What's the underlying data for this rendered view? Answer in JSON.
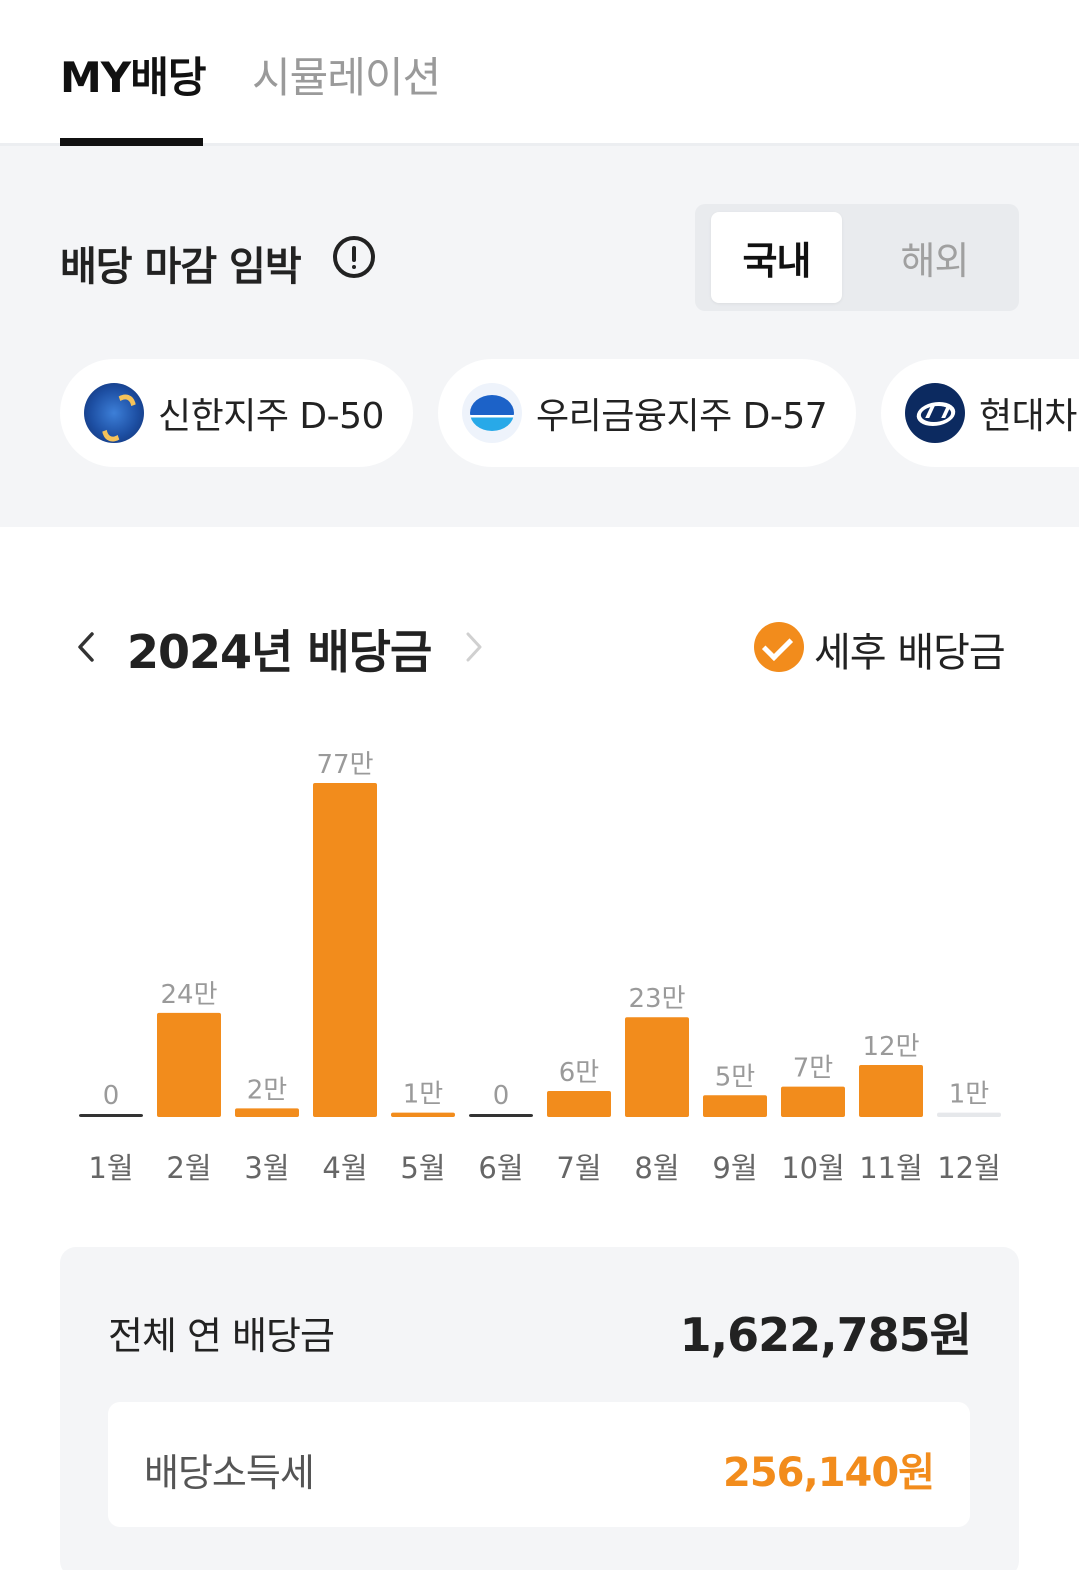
{
  "tabs": [
    {
      "label": "MY배당",
      "active": true
    },
    {
      "label": "시뮬레이션",
      "active": false
    }
  ],
  "deadline": {
    "title": "배당 마감 임박",
    "info_icon": "info-circle-icon",
    "region_toggle": {
      "domestic": "국내",
      "overseas": "해외",
      "selected": "국내"
    },
    "chips": [
      {
        "logo": "shinhan-logo",
        "text": "신한지주 D-50"
      },
      {
        "logo": "woori-logo",
        "text": "우리금융지주 D-57"
      },
      {
        "logo": "hyundai-logo",
        "text": "현대차"
      }
    ]
  },
  "year_section": {
    "title": "2024년 배당금",
    "after_tax_label": "세후 배당금",
    "after_tax_checked": true
  },
  "chart_data": {
    "type": "bar",
    "categories": [
      "1월",
      "2월",
      "3월",
      "4월",
      "5월",
      "6월",
      "7월",
      "8월",
      "9월",
      "10월",
      "11월",
      "12월"
    ],
    "values": [
      0,
      24,
      2,
      77,
      1,
      0,
      6,
      23,
      5,
      7,
      12,
      1
    ],
    "value_labels": [
      "0",
      "24만",
      "2만",
      "77만",
      "1만",
      "0",
      "6만",
      "23만",
      "5만",
      "7만",
      "12만",
      "1만"
    ],
    "unit": "만",
    "bar_color": "#f28c1c",
    "future_bar_color": "#e6e8eb",
    "zero_bar_color": "#333333",
    "future_months": [
      "12월"
    ]
  },
  "summary": {
    "annual_label": "전체 연 배당금",
    "annual_value": "1,622,785원",
    "tax_label": "배당소득세",
    "tax_value": "256,140원"
  },
  "colors": {
    "accent": "#f28c1c",
    "background_gray": "#f4f5f7"
  }
}
